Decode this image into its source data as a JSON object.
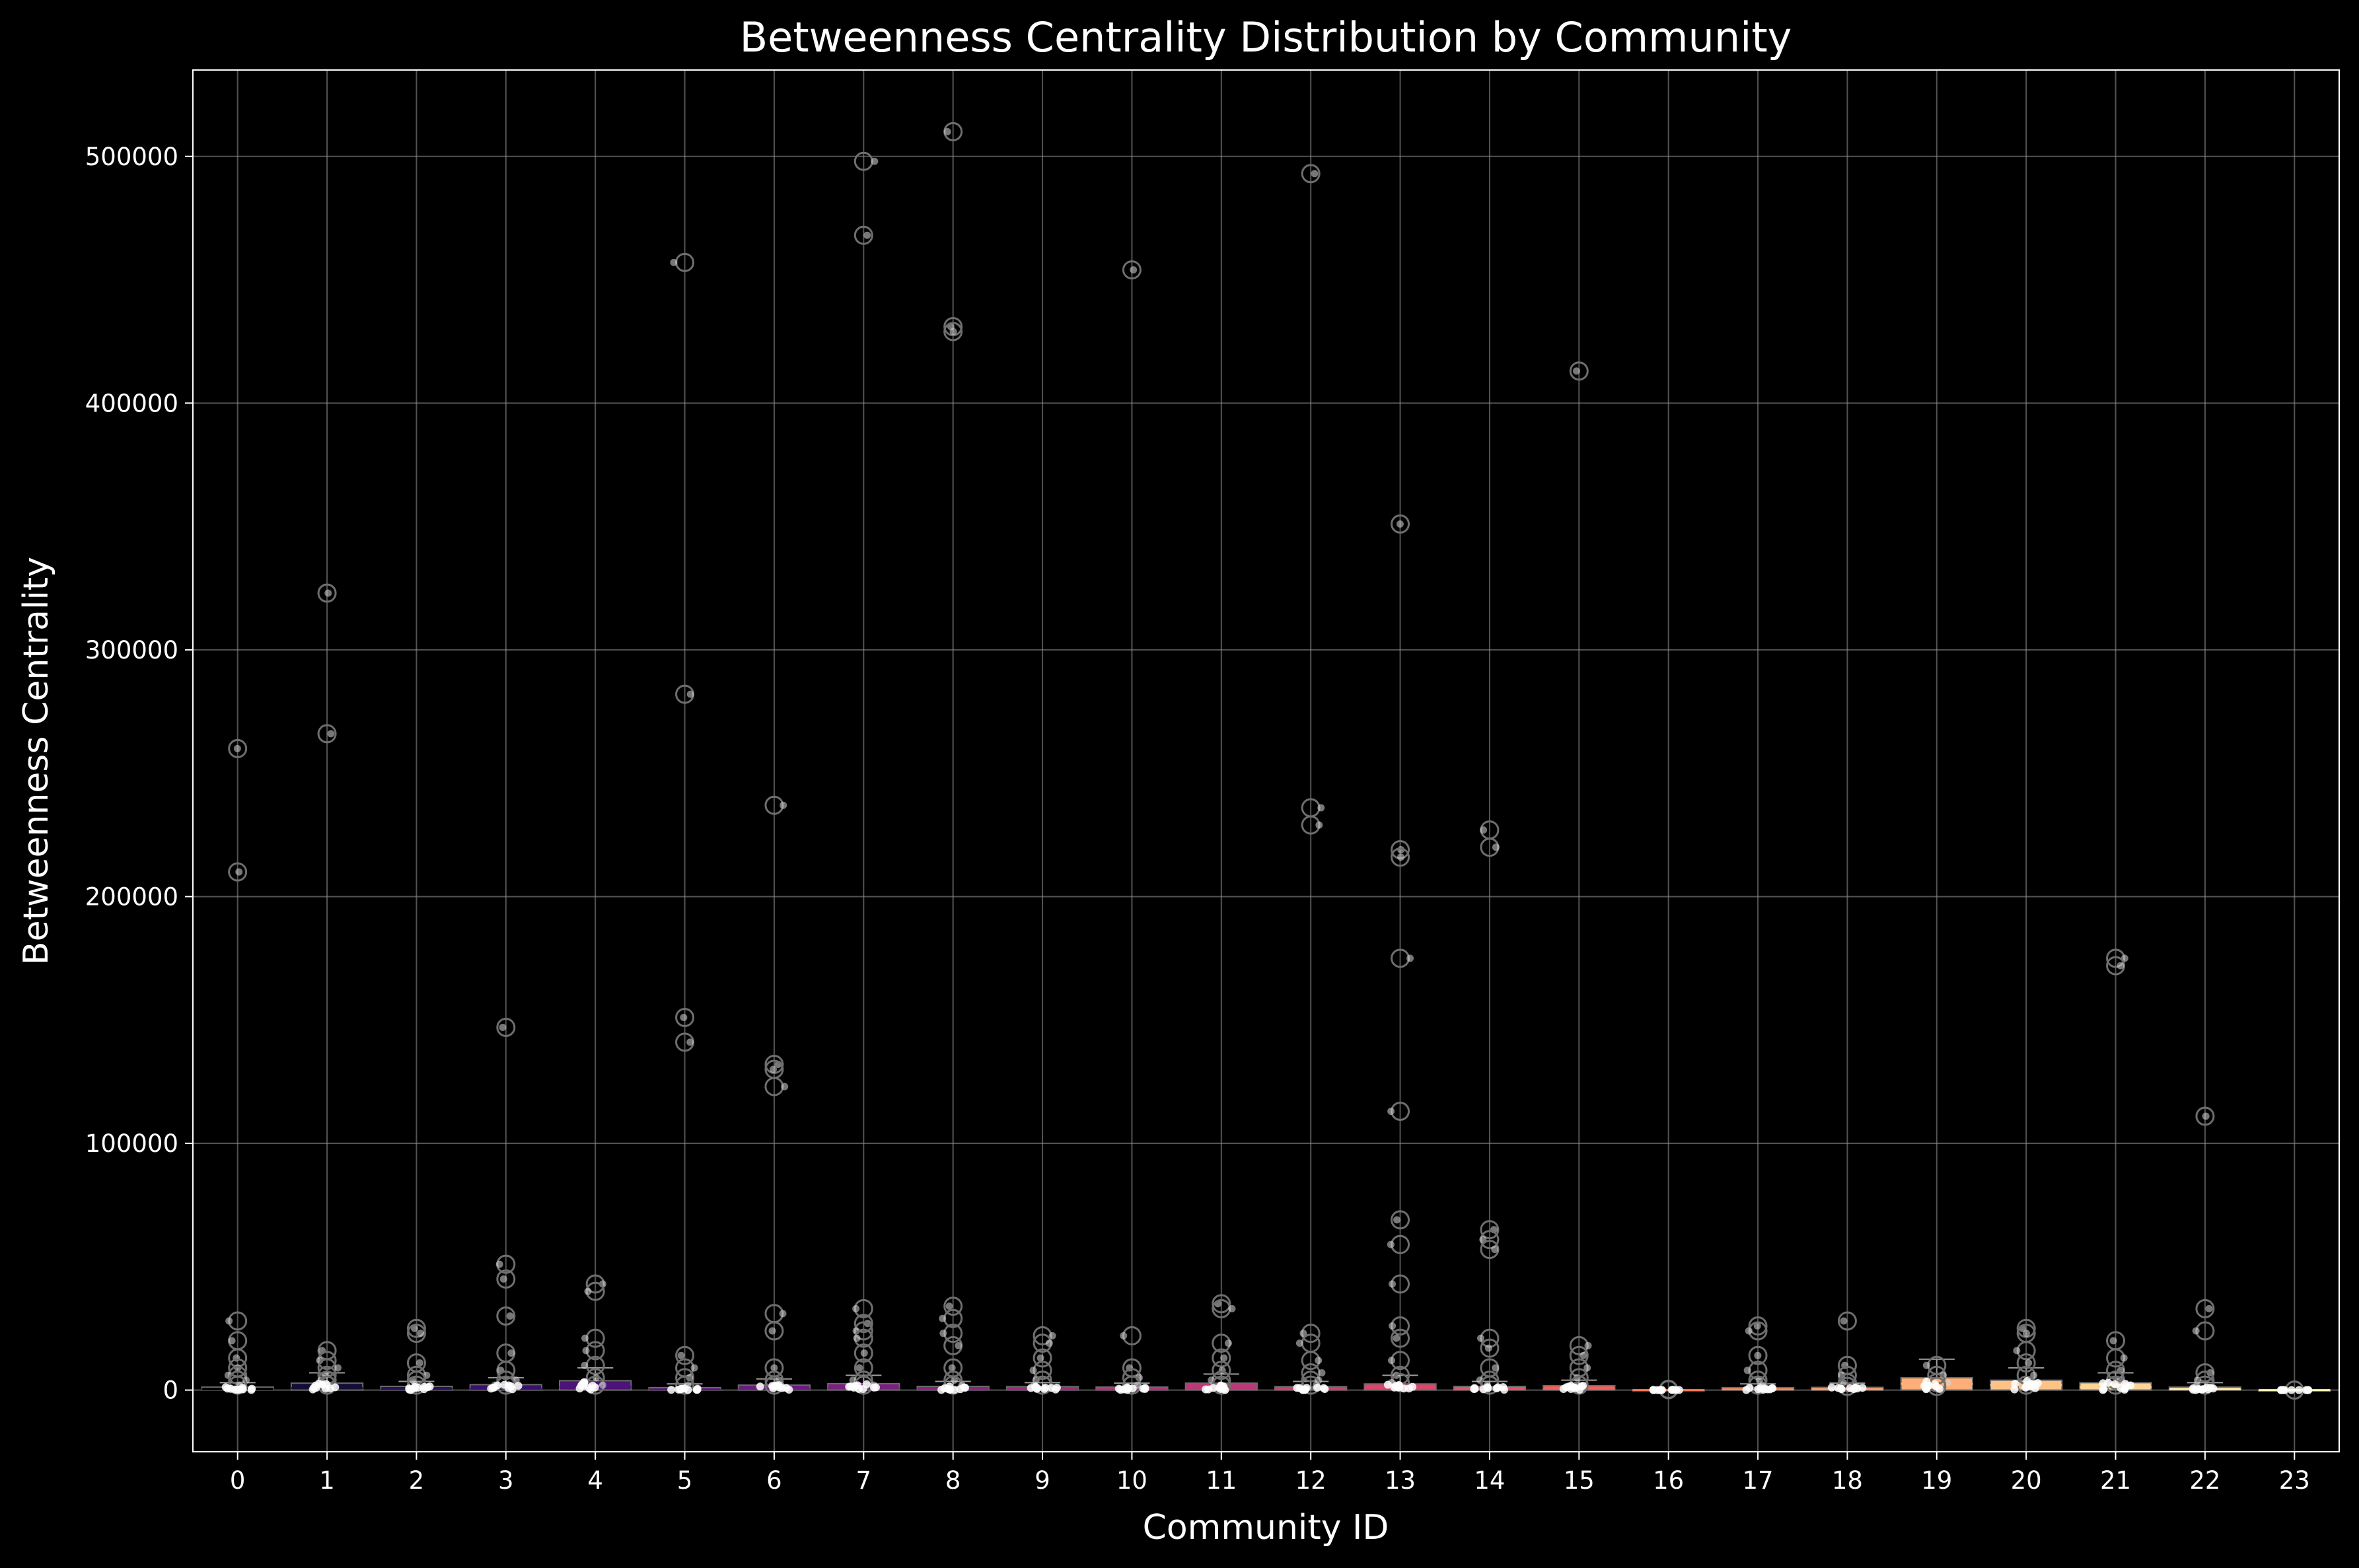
{
  "chart_data": {
    "type": "box",
    "title": "Betweenness Centrality Distribution by Community",
    "xlabel": "Community ID",
    "ylabel": "Betweenness Centrality",
    "categories": [
      "0",
      "1",
      "2",
      "3",
      "4",
      "5",
      "6",
      "7",
      "8",
      "9",
      "10",
      "11",
      "12",
      "13",
      "14",
      "15",
      "16",
      "17",
      "18",
      "19",
      "20",
      "21",
      "22",
      "23"
    ],
    "ylim": [
      -25000,
      535000
    ],
    "yticks": [
      0,
      100000,
      200000,
      300000,
      400000,
      500000
    ],
    "ytick_labels": [
      "0",
      "100000",
      "200000",
      "300000",
      "400000",
      "500000"
    ],
    "grid": true,
    "background": "#000000",
    "colors": {
      "axes": "#ffffff",
      "grid": "#8a8a8a",
      "points": "#d8d8d8",
      "outlier_ring": "#6e6e6e"
    },
    "boxes": [
      {
        "community": "0",
        "q1": 0,
        "median": 300,
        "q3": 1200,
        "whisker_high": 3000,
        "color": "#000004"
      },
      {
        "community": "1",
        "q1": 0,
        "median": 800,
        "q3": 2800,
        "whisker_high": 7000,
        "color": "#140e36"
      },
      {
        "community": "2",
        "q1": 0,
        "median": 400,
        "q3": 1500,
        "whisker_high": 3500,
        "color": "#2a0f5b"
      },
      {
        "community": "3",
        "q1": 0,
        "median": 500,
        "q3": 2200,
        "whisker_high": 5000,
        "color": "#3b0f70"
      },
      {
        "community": "4",
        "q1": 0,
        "median": 1200,
        "q3": 3800,
        "whisker_high": 9000,
        "color": "#4c1378"
      },
      {
        "community": "5",
        "q1": 0,
        "median": 300,
        "q3": 1000,
        "whisker_high": 2500,
        "color": "#5c167f"
      },
      {
        "community": "6",
        "q1": 0,
        "median": 500,
        "q3": 2000,
        "whisker_high": 4500,
        "color": "#6b1a81"
      },
      {
        "community": "7",
        "q1": 0,
        "median": 800,
        "q3": 2600,
        "whisker_high": 6000,
        "color": "#7c1f82"
      },
      {
        "community": "8",
        "q1": 0,
        "median": 400,
        "q3": 1500,
        "whisker_high": 3500,
        "color": "#8c2582"
      },
      {
        "community": "9",
        "q1": 0,
        "median": 400,
        "q3": 1400,
        "whisker_high": 3000,
        "color": "#9c2b7f"
      },
      {
        "community": "10",
        "q1": 0,
        "median": 300,
        "q3": 1200,
        "whisker_high": 2800,
        "color": "#ad347c"
      },
      {
        "community": "11",
        "q1": 0,
        "median": 900,
        "q3": 2800,
        "whisker_high": 6500,
        "color": "#bc3978"
      },
      {
        "community": "12",
        "q1": 0,
        "median": 400,
        "q3": 1400,
        "whisker_high": 3500,
        "color": "#cc3f71"
      },
      {
        "community": "13",
        "q1": 0,
        "median": 700,
        "q3": 2500,
        "whisker_high": 6000,
        "color": "#da476b"
      },
      {
        "community": "14",
        "q1": 0,
        "median": 400,
        "q3": 1500,
        "whisker_high": 3500,
        "color": "#e75263"
      },
      {
        "community": "15",
        "q1": 0,
        "median": 500,
        "q3": 1800,
        "whisker_high": 4000,
        "color": "#f1605d"
      },
      {
        "community": "16",
        "q1": 0,
        "median": 0,
        "q3": 100,
        "whisker_high": 200,
        "color": "#f8765c"
      },
      {
        "community": "17",
        "q1": 0,
        "median": 300,
        "q3": 1000,
        "whisker_high": 2500,
        "color": "#fb8861"
      },
      {
        "community": "18",
        "q1": 0,
        "median": 300,
        "q3": 1100,
        "whisker_high": 2800,
        "color": "#fd9b6b"
      },
      {
        "community": "19",
        "q1": 0,
        "median": 2500,
        "q3": 5000,
        "whisker_high": 12500,
        "color": "#feae76"
      },
      {
        "community": "20",
        "q1": 0,
        "median": 2000,
        "q3": 4000,
        "whisker_high": 9000,
        "color": "#fec287"
      },
      {
        "community": "21",
        "q1": 0,
        "median": 1200,
        "q3": 3000,
        "whisker_high": 7000,
        "color": "#fed395"
      },
      {
        "community": "22",
        "q1": 0,
        "median": 300,
        "q3": 1200,
        "whisker_high": 3000,
        "color": "#fde4a6"
      },
      {
        "community": "23",
        "q1": 0,
        "median": 0,
        "q3": 0,
        "whisker_high": 0,
        "color": "#fcf5b8"
      }
    ],
    "outliers": [
      {
        "community": "0",
        "values": [
          260000,
          210000,
          28000,
          20000,
          13000,
          9000,
          6000,
          4000,
          2000
        ]
      },
      {
        "community": "1",
        "values": [
          323000,
          266000,
          16000,
          12000,
          9000,
          6000,
          4000,
          2000
        ]
      },
      {
        "community": "2",
        "values": [
          25000,
          23000,
          11000,
          6000,
          4000,
          2000
        ]
      },
      {
        "community": "3",
        "values": [
          147000,
          51000,
          45000,
          30000,
          15000,
          8000,
          4000,
          2000
        ]
      },
      {
        "community": "4",
        "values": [
          43000,
          40000,
          21000,
          16000,
          10000,
          5000,
          2000
        ]
      },
      {
        "community": "5",
        "values": [
          457000,
          282000,
          151000,
          141000,
          14000,
          9000,
          5000,
          2000
        ]
      },
      {
        "community": "6",
        "values": [
          237000,
          132000,
          130000,
          123000,
          31000,
          24000,
          9000,
          4000,
          2000
        ]
      },
      {
        "community": "7",
        "values": [
          498000,
          468000,
          33000,
          27000,
          24000,
          21000,
          15000,
          9000,
          4000,
          2000
        ]
      },
      {
        "community": "8",
        "values": [
          510000,
          431000,
          429000,
          34000,
          29000,
          23000,
          18000,
          9000,
          4000,
          2000
        ]
      },
      {
        "community": "9",
        "values": [
          22000,
          19000,
          13000,
          8000,
          4000,
          2000
        ]
      },
      {
        "community": "10",
        "values": [
          454000,
          22000,
          9000,
          5000,
          2000
        ]
      },
      {
        "community": "11",
        "values": [
          35000,
          33000,
          19000,
          13000,
          8000,
          4000,
          2000
        ]
      },
      {
        "community": "12",
        "values": [
          493000,
          236000,
          229000,
          23000,
          19000,
          12000,
          7000,
          4000,
          2000
        ]
      },
      {
        "community": "13",
        "values": [
          351000,
          219000,
          216000,
          175000,
          113000,
          69000,
          59000,
          43000,
          26000,
          21000,
          12000,
          6000,
          3000
        ]
      },
      {
        "community": "14",
        "values": [
          227000,
          220000,
          65000,
          61000,
          57000,
          21000,
          17000,
          9000,
          4000,
          2000
        ]
      },
      {
        "community": "15",
        "values": [
          413000,
          18000,
          14000,
          9000,
          5000,
          2000
        ]
      },
      {
        "community": "16",
        "values": [
          300,
          150
        ]
      },
      {
        "community": "17",
        "values": [
          26000,
          24000,
          14000,
          8000,
          4000,
          2000
        ]
      },
      {
        "community": "18",
        "values": [
          28000,
          10000,
          6000,
          3000,
          1500
        ]
      },
      {
        "community": "19",
        "values": [
          10000,
          6000,
          3000,
          1500
        ]
      },
      {
        "community": "20",
        "values": [
          25000,
          23000,
          16000,
          11000,
          6000,
          2000
        ]
      },
      {
        "community": "21",
        "values": [
          175000,
          172000,
          20000,
          13000,
          8000,
          4000,
          2000
        ]
      },
      {
        "community": "22",
        "values": [
          111000,
          33000,
          24000,
          7000,
          4000,
          2000
        ]
      },
      {
        "community": "23",
        "values": [
          0
        ]
      }
    ]
  }
}
